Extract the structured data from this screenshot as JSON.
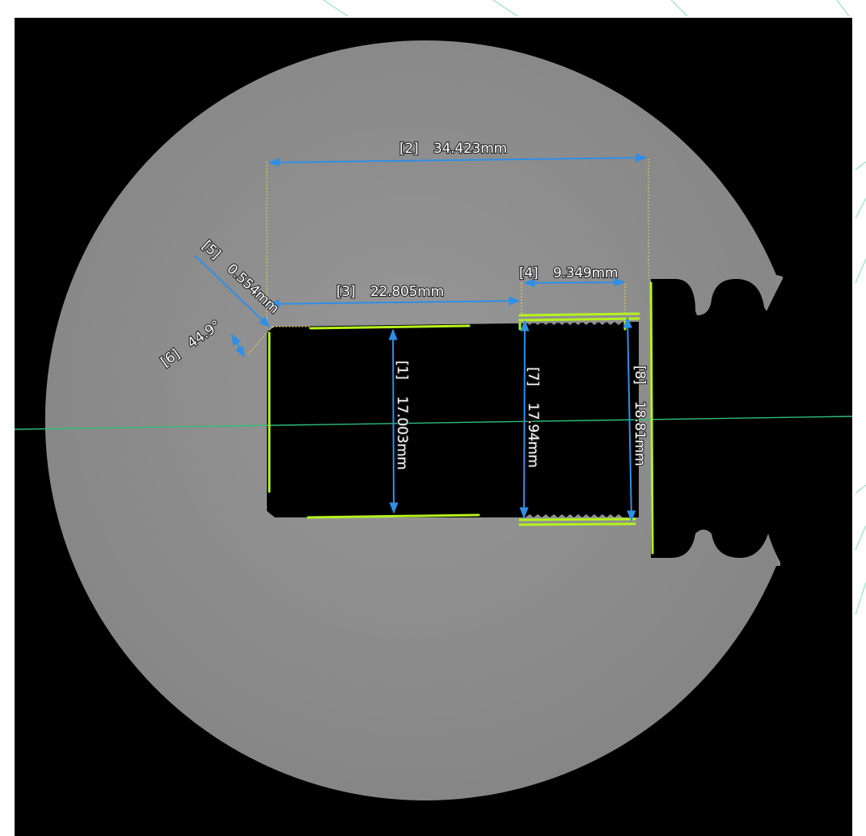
{
  "measurements": [
    {
      "id": "[1]",
      "value": "17.003mm"
    },
    {
      "id": "[2]",
      "value": "34.423mm"
    },
    {
      "id": "[3]",
      "value": "22.805mm"
    },
    {
      "id": "[4]",
      "value": "9.349mm"
    },
    {
      "id": "[5]",
      "value": "0.554mm"
    },
    {
      "id": "[6]",
      "value": "44.9°"
    },
    {
      "id": "[7]",
      "value": "17.94mm"
    },
    {
      "id": "[8]",
      "value": "18.81mm"
    }
  ],
  "colors": {
    "background": "#000000",
    "part": "#8f8f8f",
    "dimension": "#2f8fe6",
    "edge_fit": "#b5f21f",
    "extension": "#e8d54a",
    "centerline": "#2fbf7a",
    "label_text": "#ffffff",
    "watermark": "#3fc79a"
  }
}
